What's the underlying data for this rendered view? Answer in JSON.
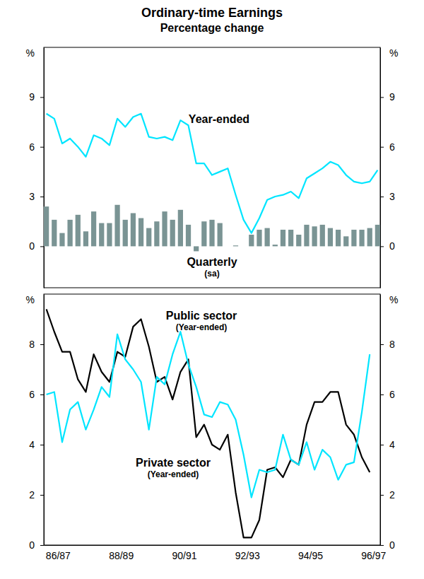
{
  "chart_data": [
    {
      "type": "line",
      "title": "Ordinary-time Earnings",
      "subtitle": "Percentage change",
      "ylabel": "%",
      "categories": [
        null,
        null,
        null,
        null,
        null,
        null,
        null,
        null,
        null,
        null,
        null,
        null,
        null,
        null,
        null,
        null,
        null,
        null,
        null,
        null,
        null,
        null,
        null,
        null,
        null,
        null,
        null,
        null,
        null,
        null,
        null,
        null,
        null,
        null,
        null,
        null,
        null,
        null,
        null,
        null,
        null,
        null,
        null
      ],
      "series": [
        {
          "name": "Year-ended",
          "type": "line",
          "color": "#00e5ff",
          "values": [
            8.0,
            7.7,
            6.2,
            6.5,
            6.0,
            5.4,
            6.7,
            6.5,
            6.1,
            7.7,
            7.2,
            7.8,
            8.0,
            6.6,
            6.5,
            6.6,
            6.4,
            7.6,
            7.3,
            5.0,
            5.0,
            4.3,
            4.5,
            4.7,
            3.1,
            1.6,
            0.8,
            1.7,
            2.8,
            3.0,
            3.1,
            3.3,
            2.9,
            4.1,
            4.4,
            4.7,
            5.1,
            4.9,
            4.3,
            3.9,
            3.8,
            3.9,
            4.6
          ]
        },
        {
          "name": "Quarterly",
          "qualifier": "(sa)",
          "type": "bar",
          "color": "#7a9494",
          "values": [
            2.4,
            1.6,
            0.8,
            1.6,
            1.9,
            0.9,
            2.1,
            1.4,
            1.4,
            2.5,
            1.6,
            2.0,
            1.7,
            1.1,
            1.5,
            2.1,
            1.6,
            2.2,
            1.3,
            -0.3,
            1.5,
            1.6,
            1.4,
            0.0,
            0.05,
            0.0,
            0.7,
            1.0,
            1.1,
            0.1,
            1.0,
            1.0,
            0.7,
            1.3,
            1.2,
            1.3,
            1.1,
            1.0,
            0.6,
            1.0,
            1.0,
            1.1,
            1.3
          ]
        }
      ],
      "ylim": [
        -2.5,
        12
      ],
      "yticks": [
        0,
        3,
        6,
        9
      ],
      "grid": false,
      "tick_labels": "y"
    },
    {
      "type": "line",
      "ylabel": "%",
      "categories": [
        null,
        "86/87",
        null,
        null,
        null,
        null,
        null,
        null,
        null,
        "88/89",
        null,
        null,
        null,
        null,
        null,
        null,
        null,
        "90/91",
        null,
        null,
        null,
        null,
        null,
        null,
        null,
        "92/93",
        null,
        null,
        null,
        null,
        null,
        null,
        null,
        "94/95",
        null,
        null,
        null,
        null,
        null,
        null,
        null,
        "96/97",
        null
      ],
      "series": [
        {
          "name": "Public sector",
          "qualifier": "(Year-ended)",
          "color": "#000000",
          "values": [
            9.4,
            8.5,
            7.7,
            7.7,
            6.6,
            6.1,
            7.6,
            6.9,
            6.5,
            7.7,
            7.5,
            8.7,
            9.0,
            7.9,
            6.5,
            6.7,
            5.8,
            6.9,
            7.4,
            4.3,
            4.8,
            4.0,
            3.8,
            4.4,
            2.1,
            0.3,
            0.3,
            1.0,
            3.0,
            3.1,
            2.7,
            3.4,
            3.2,
            4.8,
            5.7,
            5.7,
            6.1,
            6.1,
            4.8,
            4.4,
            3.5,
            2.9,
            null
          ]
        },
        {
          "name": "Private sector",
          "qualifier": "(Year-ended)",
          "color": "#00e5ff",
          "values": [
            6.0,
            6.1,
            4.1,
            5.4,
            5.7,
            4.6,
            5.4,
            6.3,
            5.9,
            8.4,
            7.4,
            7.0,
            6.5,
            4.6,
            6.7,
            6.4,
            7.6,
            8.5,
            7.2,
            6.3,
            5.2,
            5.1,
            5.7,
            5.6,
            5.0,
            3.6,
            1.9,
            3.0,
            2.9,
            3.0,
            4.4,
            3.4,
            3.2,
            4.1,
            3.0,
            3.8,
            3.5,
            2.6,
            3.2,
            3.3,
            5.3,
            7.6,
            null
          ]
        }
      ],
      "ylim": [
        0,
        10
      ],
      "yticks": [
        0,
        2,
        4,
        6,
        8
      ],
      "grid": false
    }
  ]
}
